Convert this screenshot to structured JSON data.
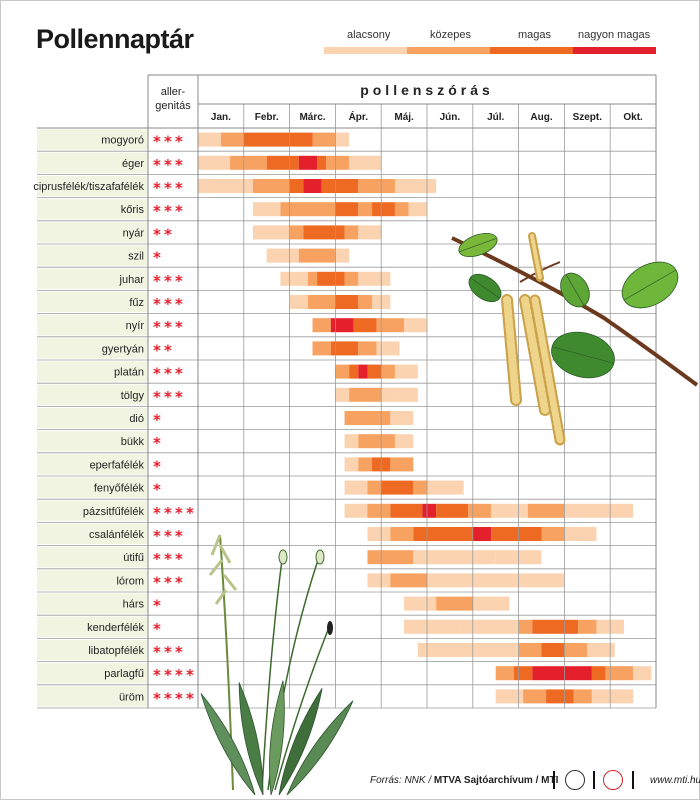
{
  "title": "Pollennaptár",
  "legend": [
    {
      "label": "alacsony",
      "color": "#fcd3b0"
    },
    {
      "label": "közepes",
      "color": "#f7a260"
    },
    {
      "label": "magas",
      "color": "#ee6a22"
    },
    {
      "label": "nagyon magas",
      "color": "#e4202c"
    }
  ],
  "header": {
    "allergenicity": "aller-\ngenitás",
    "season_title": "pollenszórás"
  },
  "star_color": "#e4202c",
  "row_fill": "#f2f4e2",
  "source": {
    "prefix": "Forrás: NNK / ",
    "bold": "MTVA Sajtóarchívum / MTI"
  },
  "website": "www.mti.hu",
  "chart_data": {
    "type": "heatmap",
    "title": "Pollennaptár",
    "categories": [
      "Jan.",
      "Febr.",
      "Márc.",
      "Ápr.",
      "Máj.",
      "Jún.",
      "Júl.",
      "Aug.",
      "Szept.",
      "Okt."
    ],
    "levels": [
      "alacsony",
      "közepes",
      "magas",
      "nagyon magas"
    ],
    "x_unit": "month (1 = Jan.)",
    "rows": [
      {
        "name": "mogyoró",
        "stars": 3,
        "segments": [
          [
            1.0,
            1.5,
            1
          ],
          [
            1.5,
            2.0,
            2
          ],
          [
            2.0,
            3.5,
            3
          ],
          [
            3.5,
            4.0,
            2
          ],
          [
            4.0,
            4.3,
            1
          ]
        ]
      },
      {
        "name": "éger",
        "stars": 3,
        "segments": [
          [
            1.0,
            1.7,
            1
          ],
          [
            1.7,
            2.5,
            2
          ],
          [
            2.5,
            3.2,
            3
          ],
          [
            3.2,
            3.6,
            4
          ],
          [
            3.6,
            3.8,
            3
          ],
          [
            3.8,
            4.3,
            2
          ],
          [
            4.3,
            5.0,
            1
          ]
        ]
      },
      {
        "name": "ciprusfélék/tiszafafélék",
        "stars": 3,
        "segments": [
          [
            1.0,
            2.2,
            1
          ],
          [
            2.2,
            3.0,
            2
          ],
          [
            3.0,
            3.3,
            3
          ],
          [
            3.3,
            3.7,
            4
          ],
          [
            3.7,
            4.5,
            3
          ],
          [
            4.5,
            5.3,
            2
          ],
          [
            5.3,
            6.2,
            1
          ]
        ]
      },
      {
        "name": "kőris",
        "stars": 3,
        "segments": [
          [
            2.2,
            2.8,
            1
          ],
          [
            2.8,
            4.0,
            2
          ],
          [
            4.0,
            4.5,
            3
          ],
          [
            4.5,
            4.8,
            2
          ],
          [
            4.8,
            5.3,
            3
          ],
          [
            5.3,
            5.6,
            2
          ],
          [
            5.6,
            6.0,
            1
          ]
        ]
      },
      {
        "name": "nyár",
        "stars": 2,
        "segments": [
          [
            2.2,
            3.0,
            1
          ],
          [
            3.0,
            3.3,
            2
          ],
          [
            3.3,
            4.2,
            3
          ],
          [
            4.2,
            4.5,
            2
          ],
          [
            4.5,
            5.0,
            1
          ]
        ]
      },
      {
        "name": "szil",
        "stars": 1,
        "segments": [
          [
            2.5,
            3.2,
            1
          ],
          [
            3.2,
            4.0,
            2
          ],
          [
            4.0,
            4.3,
            1
          ]
        ]
      },
      {
        "name": "juhar",
        "stars": 3,
        "segments": [
          [
            2.8,
            3.4,
            1
          ],
          [
            3.4,
            3.6,
            2
          ],
          [
            3.6,
            4.2,
            3
          ],
          [
            4.2,
            4.5,
            2
          ],
          [
            4.5,
            5.2,
            1
          ]
        ]
      },
      {
        "name": "fűz",
        "stars": 3,
        "segments": [
          [
            3.0,
            3.4,
            1
          ],
          [
            3.4,
            4.0,
            2
          ],
          [
            4.0,
            4.5,
            3
          ],
          [
            4.5,
            4.8,
            2
          ],
          [
            4.8,
            5.2,
            1
          ]
        ]
      },
      {
        "name": "nyír",
        "stars": 3,
        "segments": [
          [
            3.5,
            3.9,
            2
          ],
          [
            3.9,
            4.4,
            4
          ],
          [
            4.4,
            4.9,
            3
          ],
          [
            4.9,
            5.5,
            2
          ],
          [
            5.5,
            6.0,
            1
          ]
        ]
      },
      {
        "name": "gyertyán",
        "stars": 2,
        "segments": [
          [
            3.5,
            3.9,
            2
          ],
          [
            3.9,
            4.5,
            3
          ],
          [
            4.5,
            4.9,
            2
          ],
          [
            4.9,
            5.4,
            1
          ]
        ]
      },
      {
        "name": "platán",
        "stars": 3,
        "segments": [
          [
            4.0,
            4.3,
            2
          ],
          [
            4.3,
            4.5,
            3
          ],
          [
            4.5,
            4.7,
            4
          ],
          [
            4.7,
            5.0,
            3
          ],
          [
            5.0,
            5.3,
            2
          ],
          [
            5.3,
            5.8,
            1
          ]
        ]
      },
      {
        "name": "tölgy",
        "stars": 3,
        "segments": [
          [
            4.0,
            4.3,
            1
          ],
          [
            4.3,
            5.0,
            2
          ],
          [
            5.0,
            5.3,
            1
          ],
          [
            5.3,
            5.8,
            1
          ]
        ]
      },
      {
        "name": "dió",
        "stars": 1,
        "segments": [
          [
            4.2,
            5.2,
            2
          ],
          [
            5.2,
            5.7,
            1
          ]
        ]
      },
      {
        "name": "bükk",
        "stars": 1,
        "segments": [
          [
            4.2,
            4.5,
            1
          ],
          [
            4.5,
            5.3,
            2
          ],
          [
            5.3,
            5.7,
            1
          ]
        ]
      },
      {
        "name": "eperfafélék",
        "stars": 1,
        "segments": [
          [
            4.2,
            4.5,
            1
          ],
          [
            4.5,
            4.8,
            2
          ],
          [
            4.8,
            5.2,
            3
          ],
          [
            5.2,
            5.7,
            2
          ]
        ]
      },
      {
        "name": "fenyőfélék",
        "stars": 1,
        "segments": [
          [
            4.2,
            4.7,
            1
          ],
          [
            4.7,
            5.0,
            2
          ],
          [
            5.0,
            5.7,
            3
          ],
          [
            5.7,
            6.0,
            2
          ],
          [
            6.0,
            6.8,
            1
          ]
        ]
      },
      {
        "name": "pázsitfűfélék",
        "stars": 4,
        "segments": [
          [
            4.2,
            4.7,
            1
          ],
          [
            4.7,
            5.2,
            2
          ],
          [
            5.2,
            5.9,
            3
          ],
          [
            5.9,
            6.2,
            4
          ],
          [
            6.2,
            6.9,
            3
          ],
          [
            6.9,
            7.4,
            2
          ],
          [
            7.4,
            8.2,
            1
          ],
          [
            8.2,
            9.0,
            2
          ],
          [
            9.0,
            10.5,
            1
          ]
        ]
      },
      {
        "name": "csalánfélék",
        "stars": 3,
        "segments": [
          [
            4.7,
            5.2,
            1
          ],
          [
            5.2,
            5.7,
            2
          ],
          [
            5.7,
            7.0,
            3
          ],
          [
            7.0,
            7.4,
            4
          ],
          [
            7.4,
            8.5,
            3
          ],
          [
            8.5,
            9.0,
            2
          ],
          [
            9.0,
            9.7,
            1
          ]
        ]
      },
      {
        "name": "útifű",
        "stars": 3,
        "segments": [
          [
            4.7,
            5.7,
            2
          ],
          [
            5.7,
            7.5,
            1
          ],
          [
            7.5,
            8.5,
            1
          ]
        ]
      },
      {
        "name": "lórom",
        "stars": 3,
        "segments": [
          [
            4.7,
            5.2,
            1
          ],
          [
            5.2,
            6.0,
            2
          ],
          [
            6.0,
            8.0,
            1
          ],
          [
            8.0,
            9.0,
            1
          ]
        ]
      },
      {
        "name": "hárs",
        "stars": 1,
        "segments": [
          [
            5.5,
            6.2,
            1
          ],
          [
            6.2,
            7.0,
            2
          ],
          [
            7.0,
            7.8,
            1
          ]
        ]
      },
      {
        "name": "kenderfélék",
        "stars": 1,
        "segments": [
          [
            5.5,
            6.7,
            1
          ],
          [
            6.7,
            8.0,
            1
          ],
          [
            8.0,
            8.3,
            2
          ],
          [
            8.3,
            9.3,
            3
          ],
          [
            9.3,
            9.7,
            2
          ],
          [
            9.7,
            10.3,
            1
          ]
        ]
      },
      {
        "name": "libatopfélék",
        "stars": 3,
        "segments": [
          [
            5.8,
            7.0,
            1
          ],
          [
            7.0,
            8.0,
            1
          ],
          [
            8.0,
            8.5,
            2
          ],
          [
            8.5,
            9.0,
            3
          ],
          [
            9.0,
            9.5,
            2
          ],
          [
            9.5,
            10.1,
            1
          ]
        ]
      },
      {
        "name": "parlagfű",
        "stars": 4,
        "segments": [
          [
            7.5,
            7.9,
            2
          ],
          [
            7.9,
            8.3,
            3
          ],
          [
            8.3,
            9.6,
            4
          ],
          [
            9.6,
            9.9,
            3
          ],
          [
            9.9,
            10.5,
            2
          ],
          [
            10.5,
            10.9,
            1
          ]
        ]
      },
      {
        "name": "üröm",
        "stars": 4,
        "segments": [
          [
            7.5,
            8.1,
            1
          ],
          [
            8.1,
            8.6,
            2
          ],
          [
            8.6,
            9.2,
            3
          ],
          [
            9.2,
            9.6,
            2
          ],
          [
            9.6,
            10.5,
            1
          ]
        ]
      }
    ]
  }
}
